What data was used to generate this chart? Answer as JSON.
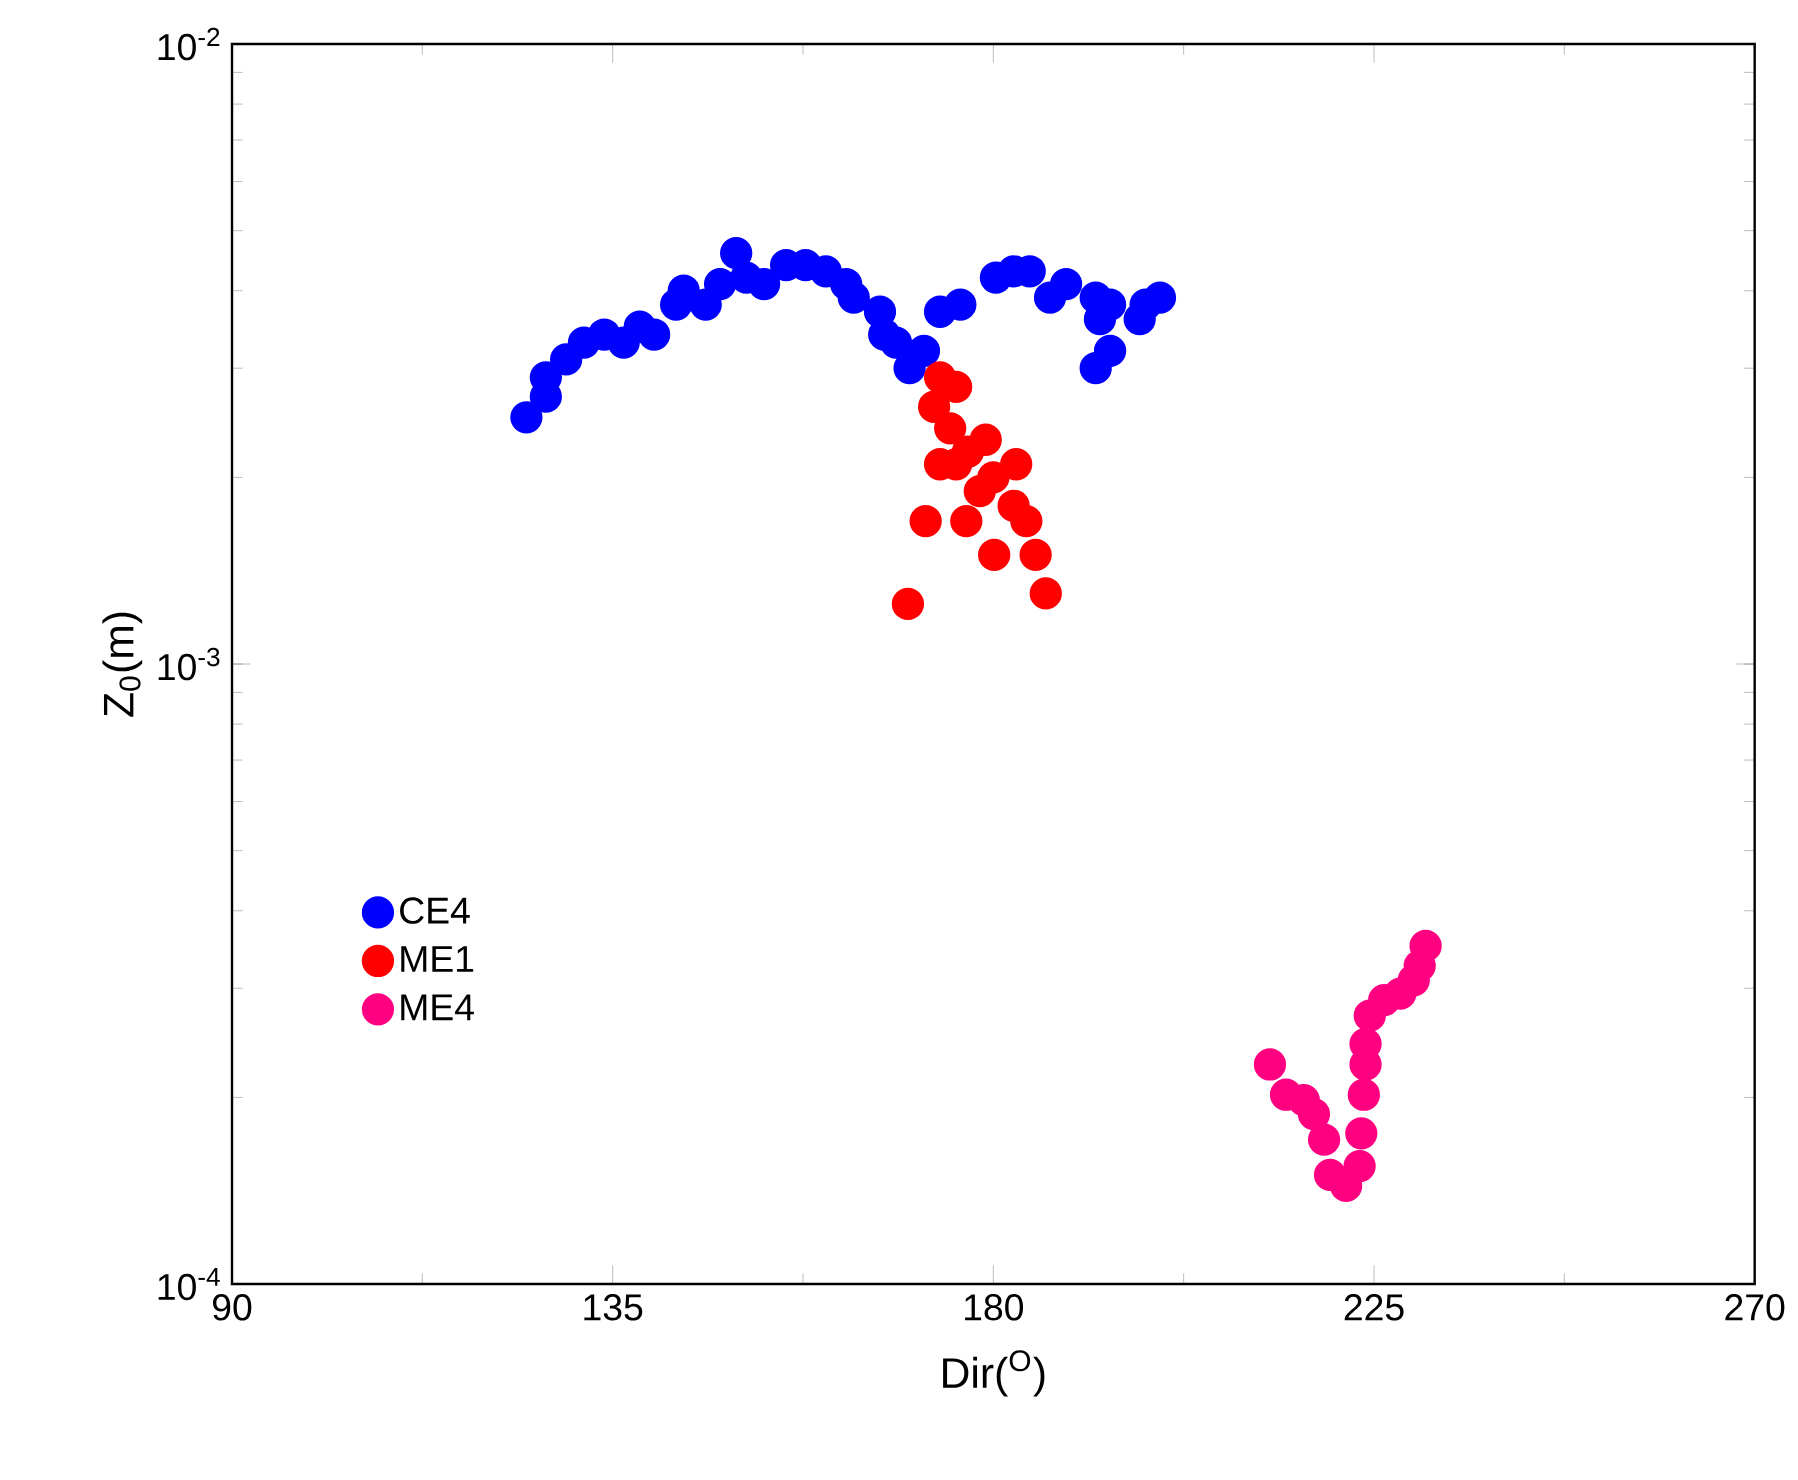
{
  "chart_data": {
    "type": "scatter",
    "xlabel": "Dir($^{O}$)",
    "ylabel": "Z$_{0}$(m)",
    "xlim": [
      90,
      270
    ],
    "xticks": [
      90,
      135,
      180,
      225,
      270
    ],
    "ylim": [
      0.0001,
      0.01
    ],
    "yticks": [
      {
        "value": 0.0001,
        "label": "10$^{-4}$"
      },
      {
        "value": 0.001,
        "label": "10$^{-3}$"
      },
      {
        "value": 0.01,
        "label": "10$^{-2}$"
      }
    ],
    "log": "y",
    "grid": false,
    "legend": "bottom left",
    "marker": "circle",
    "series": [
      {
        "name": "CE4",
        "color": "#0000ff",
        "x": [
          124.8,
          127.1,
          127.1,
          129.5,
          131.6,
          134.0,
          136.3,
          138.2,
          139.9,
          142.5,
          143.4,
          146.0,
          147.7,
          149.6,
          150.8,
          152.9,
          155.5,
          157.8,
          160.2,
          162.6,
          163.5,
          166.6,
          167.1,
          168.5,
          170.1,
          171.8,
          173.7,
          176.1,
          180.3,
          182.4,
          184.3,
          186.7,
          188.6,
          192.1,
          192.6,
          192.1,
          193.8,
          193.8,
          197.3,
          198.0,
          199.7
        ],
        "values": [
          0.0025,
          0.0027,
          0.0029,
          0.0031,
          0.0033,
          0.0034,
          0.0033,
          0.0035,
          0.0034,
          0.0038,
          0.004,
          0.0038,
          0.0041,
          0.0046,
          0.0042,
          0.0041,
          0.0044,
          0.0044,
          0.0043,
          0.0041,
          0.0039,
          0.0037,
          0.0034,
          0.0033,
          0.003,
          0.0032,
          0.0037,
          0.0038,
          0.0042,
          0.0043,
          0.0043,
          0.0039,
          0.0041,
          0.0039,
          0.0036,
          0.003,
          0.0032,
          0.0038,
          0.0036,
          0.0038,
          0.0039
        ]
      },
      {
        "name": "ME1",
        "color": "#ff0000",
        "x": [
          173.7,
          175.6,
          173.0,
          174.9,
          173.7,
          175.6,
          179.1,
          182.7,
          178.4,
          182.4,
          176.8,
          180.1,
          183.9,
          185.0,
          186.2,
          172.0,
          169.9,
          177.0,
          180.0
        ],
        "values": [
          0.0029,
          0.0028,
          0.0026,
          0.0024,
          0.0021,
          0.0021,
          0.0023,
          0.0021,
          0.0019,
          0.0018,
          0.0017,
          0.0015,
          0.0017,
          0.0015,
          0.0013,
          0.0017,
          0.00125,
          0.0022,
          0.002
        ]
      },
      {
        "name": "ME4",
        "color": "#ff0080",
        "x": [
          212.7,
          214.6,
          216.7,
          217.9,
          219.1,
          219.8,
          221.7,
          223.3,
          223.5,
          223.8,
          224.0,
          224.0,
          224.5,
          226.2,
          228.1,
          229.7,
          230.4,
          231.1
        ],
        "values": [
          0.000226,
          0.000202,
          0.000198,
          0.000188,
          0.000171,
          0.00015,
          0.000144,
          0.000155,
          0.000175,
          0.000202,
          0.000226,
          0.000244,
          0.000271,
          0.000287,
          0.000294,
          0.000309,
          0.000326,
          0.000351
        ]
      }
    ]
  }
}
